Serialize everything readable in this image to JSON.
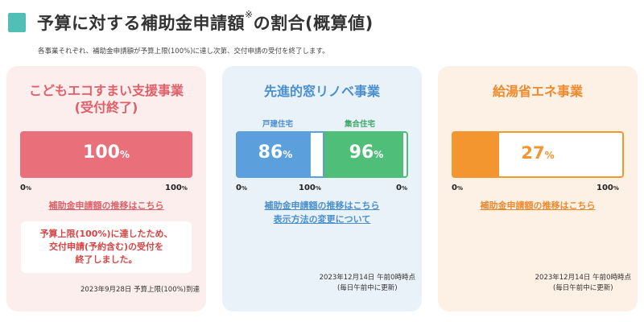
{
  "header": {
    "title": "予算に対する補助金申請額",
    "title_mark": "※",
    "title_suffix": "の割合(概算値)",
    "subtitle": "各事業それぞれ、補助金申請額が予算上限(100%)に達し次第、交付申請の受付を終了します。"
  },
  "cards": [
    {
      "title_line1": "こどもエコすまい支援事業",
      "title_line2": "(受付終了)",
      "bar_value": "100",
      "bar_unit": "%",
      "progress_percent": 100,
      "axis_min": "0",
      "axis_max": "100",
      "axis_unit": "%",
      "link": "補助金申請額の推移はこちら",
      "notice_line1": "予算上限(100%)に達したため、",
      "notice_line2": "交付申請(予約含む)の受付を",
      "notice_line3": "終了しました。",
      "footer": "2023年9月28日 予算上限(100%)到達",
      "color": "#e9707a"
    },
    {
      "title": "先進的窓リノベ事業",
      "label_left": "戸建住宅",
      "label_right": "集合住宅",
      "left_value": "86",
      "right_value": "96",
      "unit": "%",
      "left_percent": 86,
      "right_percent": 96,
      "axis_min": "0",
      "axis_max": "100",
      "axis_unit": "%",
      "link1": "補助金申請額の推移はこちら",
      "link2": "表示方法の変更について",
      "footer_line1": "2023年12月14日 午前0時時点",
      "footer_line2": "(毎日午前中に更新)",
      "left_color": "#5b9fdc",
      "right_color": "#4fbe78"
    },
    {
      "title": "給湯省エネ事業",
      "bar_value": "27",
      "bar_unit": "%",
      "progress_percent": 27,
      "axis_min": "0",
      "axis_max": "100",
      "axis_unit": "%",
      "link": "補助金申請額の推移はこちら",
      "footer_line1": "2023年12月14日 午前0時時点",
      "footer_line2": "(毎日午前中に更新)",
      "color": "#f3962f"
    }
  ]
}
